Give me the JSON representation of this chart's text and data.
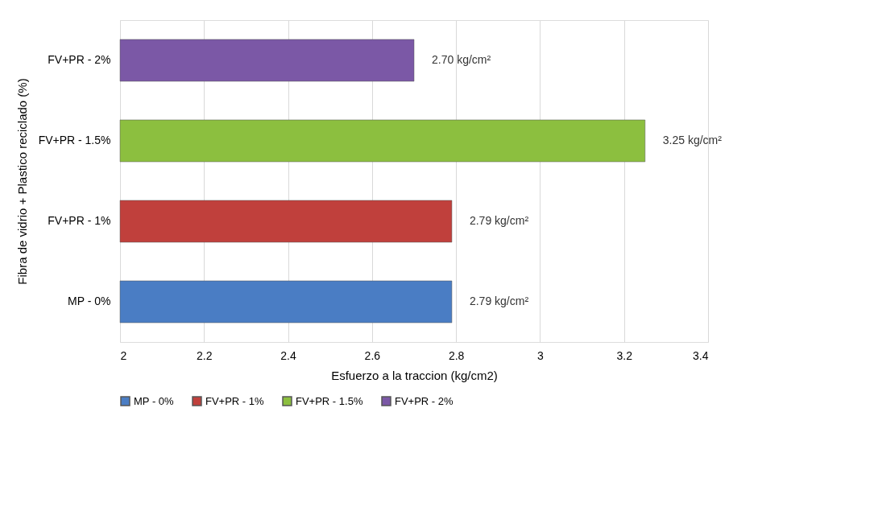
{
  "chart_data": {
    "type": "bar",
    "orientation": "horizontal",
    "xlabel": "Esfuerzo a la traccion (kg/cm2)",
    "ylabel": "Fibra de vidrio + Plastico reciclado (%)",
    "categories": [
      "FV+PR - 2%",
      "FV+PR - 1.5%",
      "FV+PR - 1%",
      "MP - 0%"
    ],
    "series": [
      {
        "name": "MP - 0%",
        "color": "#4a7dc4",
        "values": [
          null,
          null,
          null,
          2.79
        ],
        "value_labels": [
          null,
          null,
          null,
          "2.79 kg/cm²"
        ]
      },
      {
        "name": "FV+PR - 1%",
        "color": "#c0403c",
        "values": [
          null,
          null,
          2.79,
          null
        ],
        "value_labels": [
          null,
          null,
          "2.79 kg/cm²",
          null
        ]
      },
      {
        "name": "FV+PR - 1.5%",
        "color": "#8cbf3f",
        "values": [
          null,
          3.25,
          null,
          null
        ],
        "value_labels": [
          null,
          "3.25 kg/cm²",
          null,
          null
        ]
      },
      {
        "name": "FV+PR - 2%",
        "color": "#7b58a6",
        "values": [
          2.7,
          null,
          null,
          null
        ],
        "value_labels": [
          "2.70 kg/cm²",
          null,
          null,
          null
        ]
      }
    ],
    "xlim": [
      2,
      3.4
    ],
    "xticks": [
      2,
      2.2,
      2.4,
      2.6,
      2.8,
      3,
      3.2,
      3.4
    ],
    "grid": "x",
    "legend": "bottom"
  }
}
